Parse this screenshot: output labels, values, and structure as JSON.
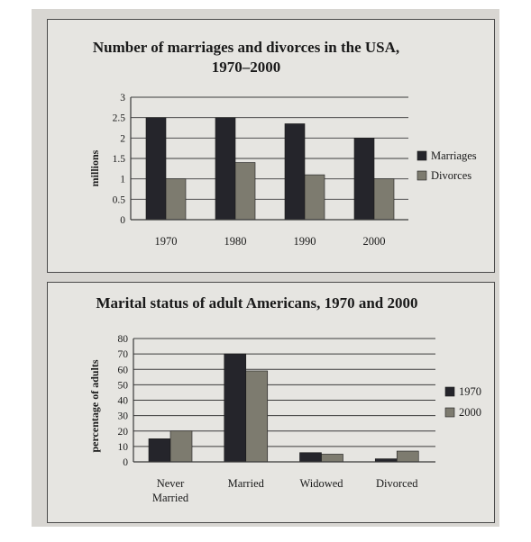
{
  "colors": {
    "dark": "#25252b",
    "grey": "#7d7b6f",
    "frame": "#3a3a3a"
  },
  "chart_data": [
    {
      "type": "bar",
      "title": "Number of marriages and divorces in the USA,",
      "subtitle": "1970–2000",
      "ylabel": "millions",
      "xlabel": "",
      "ylim": [
        0,
        3
      ],
      "yticks": [
        0,
        0.5,
        1,
        1.5,
        2,
        2.5,
        3
      ],
      "ytick_labels": [
        "0",
        "0.5",
        "1",
        "1.5",
        "2",
        "2.5",
        "3"
      ],
      "categories": [
        "1970",
        "1980",
        "1990",
        "2000"
      ],
      "series": [
        {
          "name": "Marriages",
          "values": [
            2.5,
            2.5,
            2.35,
            2.0
          ]
        },
        {
          "name": "Divorces",
          "values": [
            1.0,
            1.4,
            1.1,
            1.0
          ]
        }
      ],
      "grid": true,
      "legend": "right"
    },
    {
      "type": "bar",
      "title": "Marital status of adult Americans, 1970 and 2000",
      "ylabel": "percentage of adults",
      "xlabel": "",
      "ylim": [
        0,
        80
      ],
      "yticks": [
        0,
        10,
        20,
        30,
        40,
        50,
        60,
        70,
        80
      ],
      "ytick_labels": [
        "0",
        "10",
        "20",
        "30",
        "40",
        "50",
        "60",
        "70",
        "80"
      ],
      "categories": [
        [
          "Never",
          "Married"
        ],
        [
          "Married"
        ],
        [
          "Widowed"
        ],
        [
          "Divorced"
        ]
      ],
      "series": [
        {
          "name": "1970",
          "values": [
            15,
            70,
            6,
            2
          ]
        },
        {
          "name": "2000",
          "values": [
            20,
            59,
            5,
            7
          ]
        }
      ],
      "grid": true,
      "legend": "right"
    }
  ]
}
